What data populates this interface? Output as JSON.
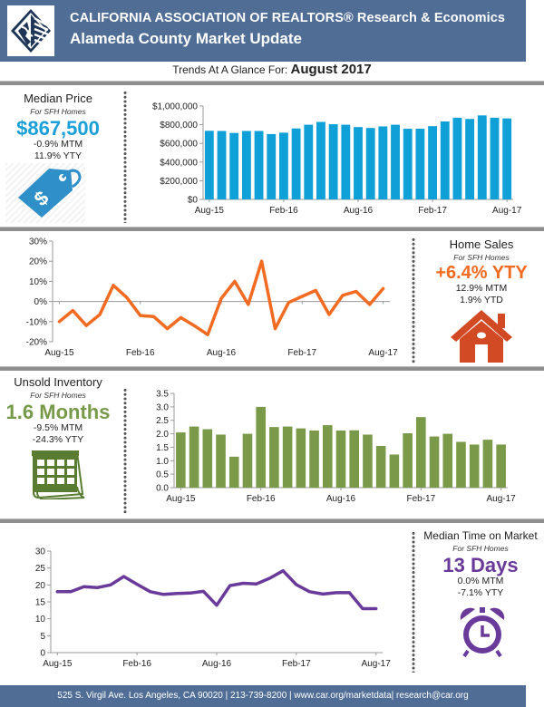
{
  "header": {
    "org": "CALIFORNIA ASSOCIATION OF REALTORS® Research & Economics",
    "title": "Alameda County Market Update",
    "logo_icon": "car-california-logo"
  },
  "trend": {
    "prefix": "Trends At A Glance For: ",
    "period": "August 2017"
  },
  "colors": {
    "header": "#4f6d95",
    "price": "#1a9fd8",
    "sales": "#f26b22",
    "inventory": "#77994a",
    "dom": "#6a3a9a"
  },
  "median_price": {
    "title": "Median Price",
    "sub": "For SFH Homes",
    "value": "$867,500",
    "mtm": "-0.9% MTM",
    "yty": "11.9% YTY",
    "icon": "price-tag-icon"
  },
  "home_sales": {
    "title": "Home Sales",
    "sub": "For SFH Homes",
    "value": "+6.4% YTY",
    "mtm": "12.9% MTM",
    "ytd": "1.9% YTD",
    "icon": "house-icon"
  },
  "inventory": {
    "title": "Unsold Inventory",
    "sub": "For SFH Homes",
    "value": "1.6 Months",
    "mtm": "-9.5% MTM",
    "yty": "-24.3% YTY",
    "icon": "calendar-icon"
  },
  "dom": {
    "title": "Median Time on Market",
    "sub": "For SFH Homes",
    "value": "13 Days",
    "mtm": "0.0% MTM",
    "yty": "-7.1% YTY",
    "icon": "alarm-clock-icon"
  },
  "footer": {
    "text": "525 S. Virgil Ave. Los Angeles, CA 90020  |  213-739-8200  |  www.car.org/marketdata|  research@car.org"
  },
  "chart_data": [
    {
      "type": "bar",
      "title": "Median Price",
      "xlabel": "",
      "ylabel": "",
      "x_tick_labels": [
        "Aug-15",
        "Feb-16",
        "Aug-16",
        "Feb-17",
        "Aug-17"
      ],
      "y_tick_labels": [
        "$0",
        "$200,000",
        "$400,000",
        "$600,000",
        "$800,000",
        "$1,000,000"
      ],
      "ylim": [
        0,
        1000000
      ],
      "grid": false,
      "values": [
        735000,
        733000,
        712000,
        733000,
        733000,
        700000,
        715000,
        760000,
        800000,
        830000,
        805000,
        800000,
        775000,
        765000,
        782000,
        800000,
        757000,
        757000,
        785000,
        835000,
        875000,
        862000,
        900000,
        875000,
        867500
      ]
    },
    {
      "type": "line",
      "title": "Home Sales YTY",
      "xlabel": "",
      "ylabel": "",
      "x_tick_labels": [
        "Aug-15",
        "Feb-16",
        "Aug-16",
        "Feb-17",
        "Aug-17"
      ],
      "y_tick_labels": [
        "-20%",
        "-10%",
        "0%",
        "10%",
        "20%",
        "30%"
      ],
      "ylim": [
        -20,
        30
      ],
      "grid": false,
      "values": [
        -10,
        -4.5,
        -12,
        -6.5,
        8,
        2,
        -7,
        -7.5,
        -13.5,
        -8,
        -12,
        -16.5,
        1.5,
        10,
        -1.5,
        20,
        -13.5,
        -0.5,
        2.5,
        5.5,
        -6.5,
        3,
        5,
        -1.5,
        6.4
      ]
    },
    {
      "type": "bar",
      "title": "Unsold Inventory",
      "xlabel": "",
      "ylabel": "",
      "x_tick_labels": [
        "Aug-15",
        "Feb-16",
        "Aug-16",
        "Feb-17",
        "Aug-17"
      ],
      "y_tick_labels": [
        "0.0",
        "0.5",
        "1.0",
        "1.5",
        "2.0",
        "2.5",
        "3.0",
        "3.5"
      ],
      "ylim": [
        0,
        3.5
      ],
      "grid": false,
      "values": [
        2.05,
        2.27,
        2.17,
        1.97,
        1.15,
        2.0,
        3.0,
        2.25,
        2.27,
        2.2,
        2.12,
        2.32,
        2.12,
        2.13,
        1.97,
        1.55,
        1.23,
        2.02,
        2.62,
        1.9,
        2.0,
        1.7,
        1.6,
        1.78,
        1.6
      ]
    },
    {
      "type": "line",
      "title": "Median Time on Market",
      "xlabel": "",
      "ylabel": "",
      "x_tick_labels": [
        "Aug-15",
        "Feb-16",
        "Aug-16",
        "Feb-17",
        "Aug-17"
      ],
      "y_tick_labels": [
        "0",
        "5",
        "10",
        "15",
        "20",
        "25",
        "30"
      ],
      "ylim": [
        0,
        30
      ],
      "grid": false,
      "values": [
        18,
        18,
        19.5,
        19.2,
        20,
        22.5,
        20.2,
        18,
        17.2,
        17.5,
        17.6,
        18.1,
        14,
        19.8,
        20.5,
        20.3,
        22,
        24.2,
        20.1,
        18,
        17.3,
        17.7,
        17.7,
        13,
        13
      ]
    }
  ]
}
